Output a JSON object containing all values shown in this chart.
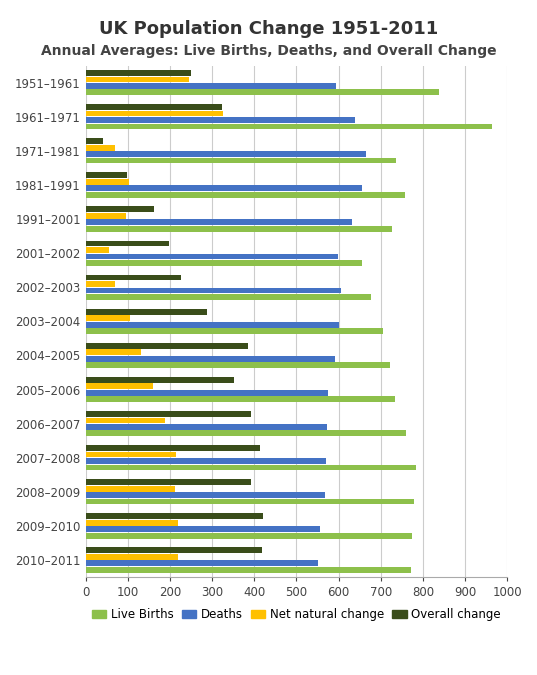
{
  "title": "UK Population Change 1951-2011",
  "subtitle": "Annual Averages: Live Births, Deaths, and Overall Change",
  "categories": [
    "1951–1961",
    "1961–1971",
    "1971–1981",
    "1981–1991",
    "1991–2001",
    "2001–2002",
    "2002–2003",
    "2003–2004",
    "2004–2005",
    "2005–2006",
    "2006–2007",
    "2007–2008",
    "2008–2009",
    "2009–2010",
    "2010–2011"
  ],
  "live_births": [
    839,
    963,
    736,
    757,
    726,
    655,
    676,
    706,
    723,
    733,
    759,
    783,
    779,
    775,
    771
  ],
  "deaths": [
    593,
    638,
    666,
    655,
    631,
    599,
    606,
    601,
    591,
    574,
    572,
    569,
    568,
    557,
    552
  ],
  "net_natural": [
    246,
    325,
    70,
    102,
    95,
    56,
    70,
    105,
    132,
    159,
    187,
    214,
    211,
    218,
    219
  ],
  "overall": [
    249,
    323,
    40,
    99,
    163,
    197,
    226,
    288,
    385,
    352,
    393,
    413,
    392,
    420,
    418
  ],
  "colors": {
    "live_births": "#8DC04B",
    "deaths": "#4472C4",
    "net_natural": "#FFC000",
    "overall": "#3A4D1A"
  },
  "xlim": [
    0,
    1000
  ],
  "xticks": [
    0,
    100,
    200,
    300,
    400,
    500,
    600,
    700,
    800,
    900,
    1000
  ],
  "background_color": "#FFFFFF",
  "grid_color": "#CCCCCC",
  "title_fontsize": 13,
  "subtitle_fontsize": 10,
  "tick_fontsize": 8.5,
  "legend_fontsize": 8.5,
  "bar_height": 0.17,
  "bar_spacing": 0.02
}
